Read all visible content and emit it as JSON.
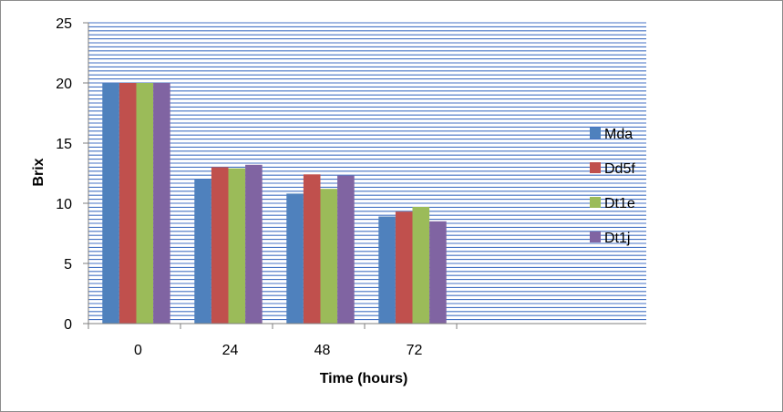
{
  "chart_data": {
    "type": "bar",
    "categories": [
      "0",
      "24",
      "48",
      "72"
    ],
    "series": [
      {
        "name": "Mda",
        "color": "#4F81BD",
        "values": [
          20,
          12.0,
          10.8,
          8.9
        ]
      },
      {
        "name": "Dd5f",
        "color": "#C0504D",
        "values": [
          20,
          13.0,
          12.4,
          9.3
        ]
      },
      {
        "name": "Dt1e",
        "color": "#9BBB59",
        "values": [
          20,
          12.9,
          11.2,
          9.7
        ]
      },
      {
        "name": "Dt1j",
        "color": "#8064A2",
        "values": [
          20,
          13.2,
          12.3,
          8.5
        ]
      }
    ],
    "title": "",
    "xlabel": "Time (hours)",
    "ylabel": "Brix",
    "ylim": [
      0,
      25
    ],
    "yticks": [
      "0",
      "5",
      "10",
      "15",
      "20",
      "25"
    ],
    "grid": true,
    "plot_background": "striped",
    "legend_position": "right"
  }
}
